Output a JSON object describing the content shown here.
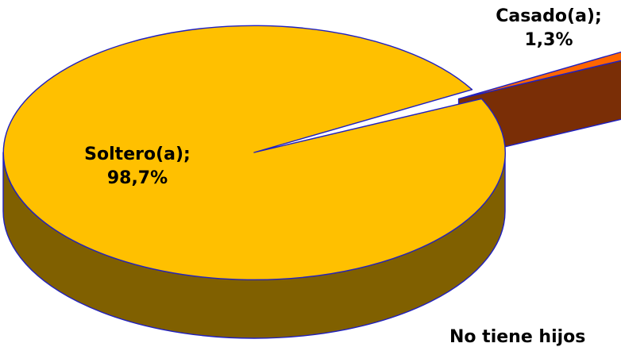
{
  "chart_data": {
    "type": "pie",
    "title": "",
    "categories": [
      "Soltero(a)",
      "Casado(a)"
    ],
    "values": [
      98.7,
      1.3
    ],
    "labels": [
      {
        "name": "Soltero(a);",
        "value": "98,7%"
      },
      {
        "name": "Casado(a);",
        "value": "1,3%"
      }
    ],
    "exploded_slice": "Casado(a)",
    "three_d": true,
    "legend": "none"
  },
  "colors": {
    "soltero_top": "#FFC000",
    "soltero_side": "#806000",
    "casado_top": "#FF6600",
    "casado_side": "#7A2E06",
    "outline": "#2020C0"
  },
  "footer_text": "No tiene hijos"
}
